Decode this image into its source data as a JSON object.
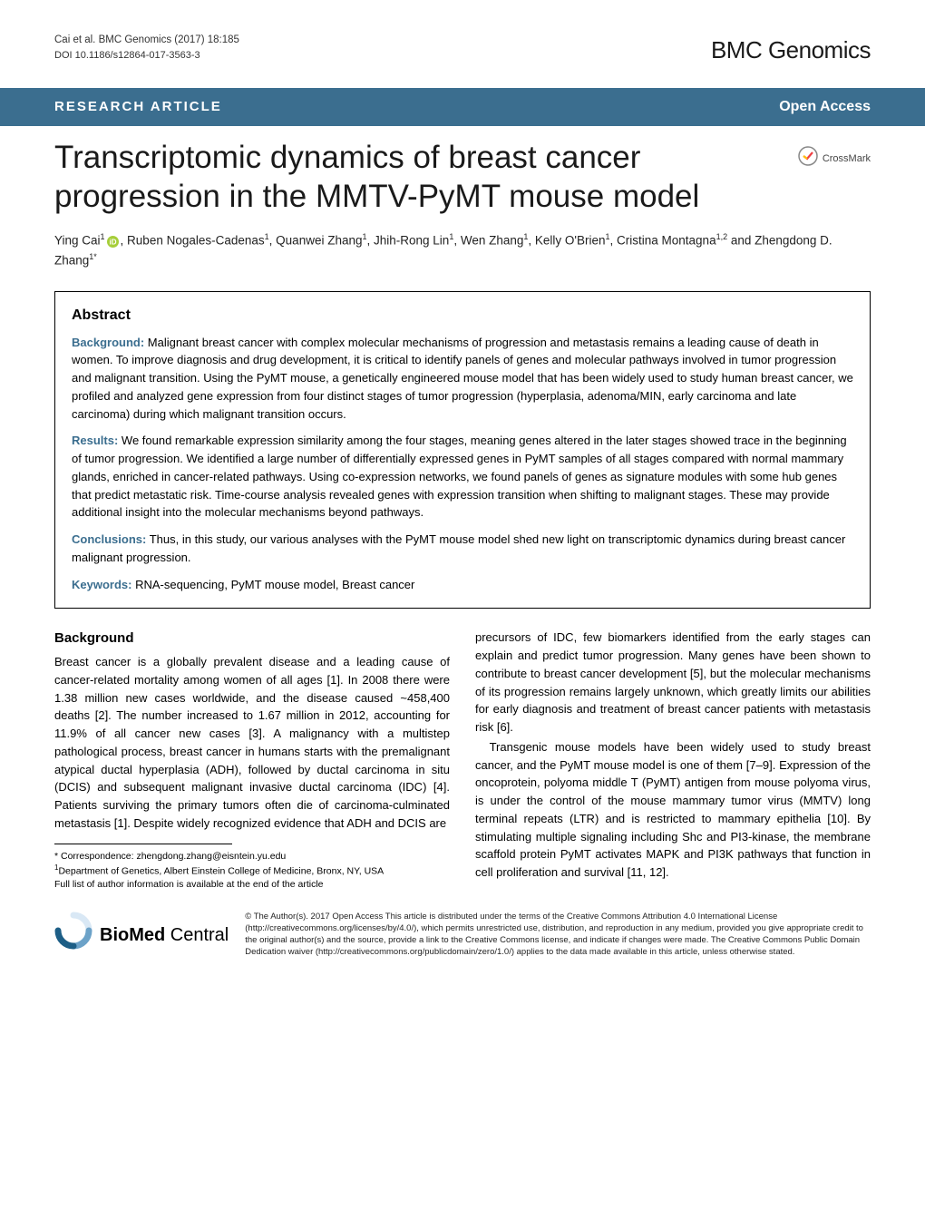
{
  "header": {
    "citation": "Cai et al. BMC Genomics  (2017) 18:185",
    "doi": "DOI 10.1186/s12864-017-3563-3",
    "journal": "BMC Genomics"
  },
  "article_bar": {
    "type": "RESEARCH ARTICLE",
    "access": "Open Access",
    "bar_bg": "#3b6e8f",
    "bar_fg": "#ffffff"
  },
  "crossmark_label": "CrossMark",
  "title": "Transcriptomic dynamics of breast cancer progression in the MMTV-PyMT mouse model",
  "authors_html": "Ying Cai<sup>1</sup>{ORCID}, Ruben Nogales-Cadenas<sup>1</sup>, Quanwei Zhang<sup>1</sup>, Jhih-Rong Lin<sup>1</sup>, Wen Zhang<sup>1</sup>, Kelly O'Brien<sup>1</sup>, Cristina Montagna<sup>1,2</sup> and Zhengdong D. Zhang<sup>1*</sup>",
  "abstract": {
    "heading": "Abstract",
    "background_label": "Background:",
    "background": " Malignant breast cancer with complex molecular mechanisms of progression and metastasis remains a leading cause of death in women. To improve diagnosis and drug development, it is critical to identify panels of genes and molecular pathways involved in tumor progression and malignant transition. Using the PyMT mouse, a genetically engineered mouse model that has been widely used to study human breast cancer, we profiled and analyzed gene expression from four distinct stages of tumor progression (hyperplasia, adenoma/MIN, early carcinoma and late carcinoma) during which malignant transition occurs.",
    "results_label": "Results:",
    "results": " We found remarkable expression similarity among the four stages, meaning genes altered in the later stages showed trace in the beginning of tumor progression. We identified a large number of differentially expressed genes in PyMT samples of all stages compared with normal mammary glands, enriched in cancer-related pathways. Using co-expression networks, we found panels of genes as signature modules with some hub genes that predict metastatic risk. Time-course analysis revealed genes with expression transition when shifting to malignant stages. These may provide additional insight into the molecular mechanisms beyond pathways.",
    "conclusions_label": "Conclusions:",
    "conclusions": " Thus, in this study, our various analyses with the PyMT mouse model shed new light on transcriptomic dynamics during breast cancer malignant progression.",
    "keywords_label": "Keywords:",
    "keywords": " RNA-sequencing, PyMT mouse model, Breast cancer"
  },
  "body": {
    "heading": "Background",
    "left_col": "Breast cancer is a globally prevalent disease and a leading cause of cancer-related mortality among women of all ages [1]. In 2008 there were 1.38 million new cases worldwide, and the disease caused ~458,400 deaths [2]. The number increased to 1.67 million in 2012, accounting for 11.9% of all cancer new cases [3]. A malignancy with a multistep pathological process, breast cancer in humans starts with the premalignant atypical ductal hyperplasia (ADH), followed by ductal carcinoma in situ (DCIS) and subsequent malignant invasive ductal carcinoma (IDC) [4]. Patients surviving the primary tumors often die of carcinoma-culminated metastasis [1]. Despite widely recognized evidence that ADH and DCIS are",
    "right_col_p1": "precursors of IDC, few biomarkers identified from the early stages can explain and predict tumor progression. Many genes have been shown to contribute to breast cancer development [5], but the molecular mechanisms of its progression remains largely unknown, which greatly limits our abilities for early diagnosis and treatment of breast cancer patients with metastasis risk [6].",
    "right_col_p2": "Transgenic mouse models have been widely used to study breast cancer, and the PyMT mouse model is one of them [7–9]. Expression of the oncoprotein, polyoma middle T (PyMT) antigen from mouse polyoma virus, is under the control of the mouse mammary tumor virus (MMTV) long terminal repeats (LTR) and is restricted to mammary epithelia [10]. By stimulating multiple signaling including Shc and PI3-kinase, the membrane scaffold protein PyMT activates MAPK and PI3K pathways that function in cell proliferation and survival [11, 12]."
  },
  "correspondence": {
    "email_line": "* Correspondence: zhengdong.zhang@eisntein.yu.edu",
    "affil": "Department of Genetics, Albert Einstein College of Medicine, Bronx, NY, USA",
    "note": "Full list of author information is available at the end of the article"
  },
  "footer": {
    "logo_bio": "BioMed",
    "logo_central": " Central",
    "license": "© The Author(s). 2017 Open Access This article is distributed under the terms of the Creative Commons Attribution 4.0 International License (http://creativecommons.org/licenses/by/4.0/), which permits unrestricted use, distribution, and reproduction in any medium, provided you give appropriate credit to the original author(s) and the source, provide a link to the Creative Commons license, and indicate if changes were made. The Creative Commons Public Domain Dedication waiver (http://creativecommons.org/publicdomain/zero/1.0/) applies to the data made available in this article, unless otherwise stated."
  },
  "colors": {
    "accent": "#3b6e8f",
    "orcid": "#a6ce39",
    "crossmark_red": "#ef3e42",
    "crossmark_yellow": "#ffc20e",
    "crossmark_blue": "#00aeef",
    "bmc_arc1": "#d9e8f5",
    "bmc_arc2": "#6ca2c8",
    "bmc_arc3": "#1d5e86"
  }
}
